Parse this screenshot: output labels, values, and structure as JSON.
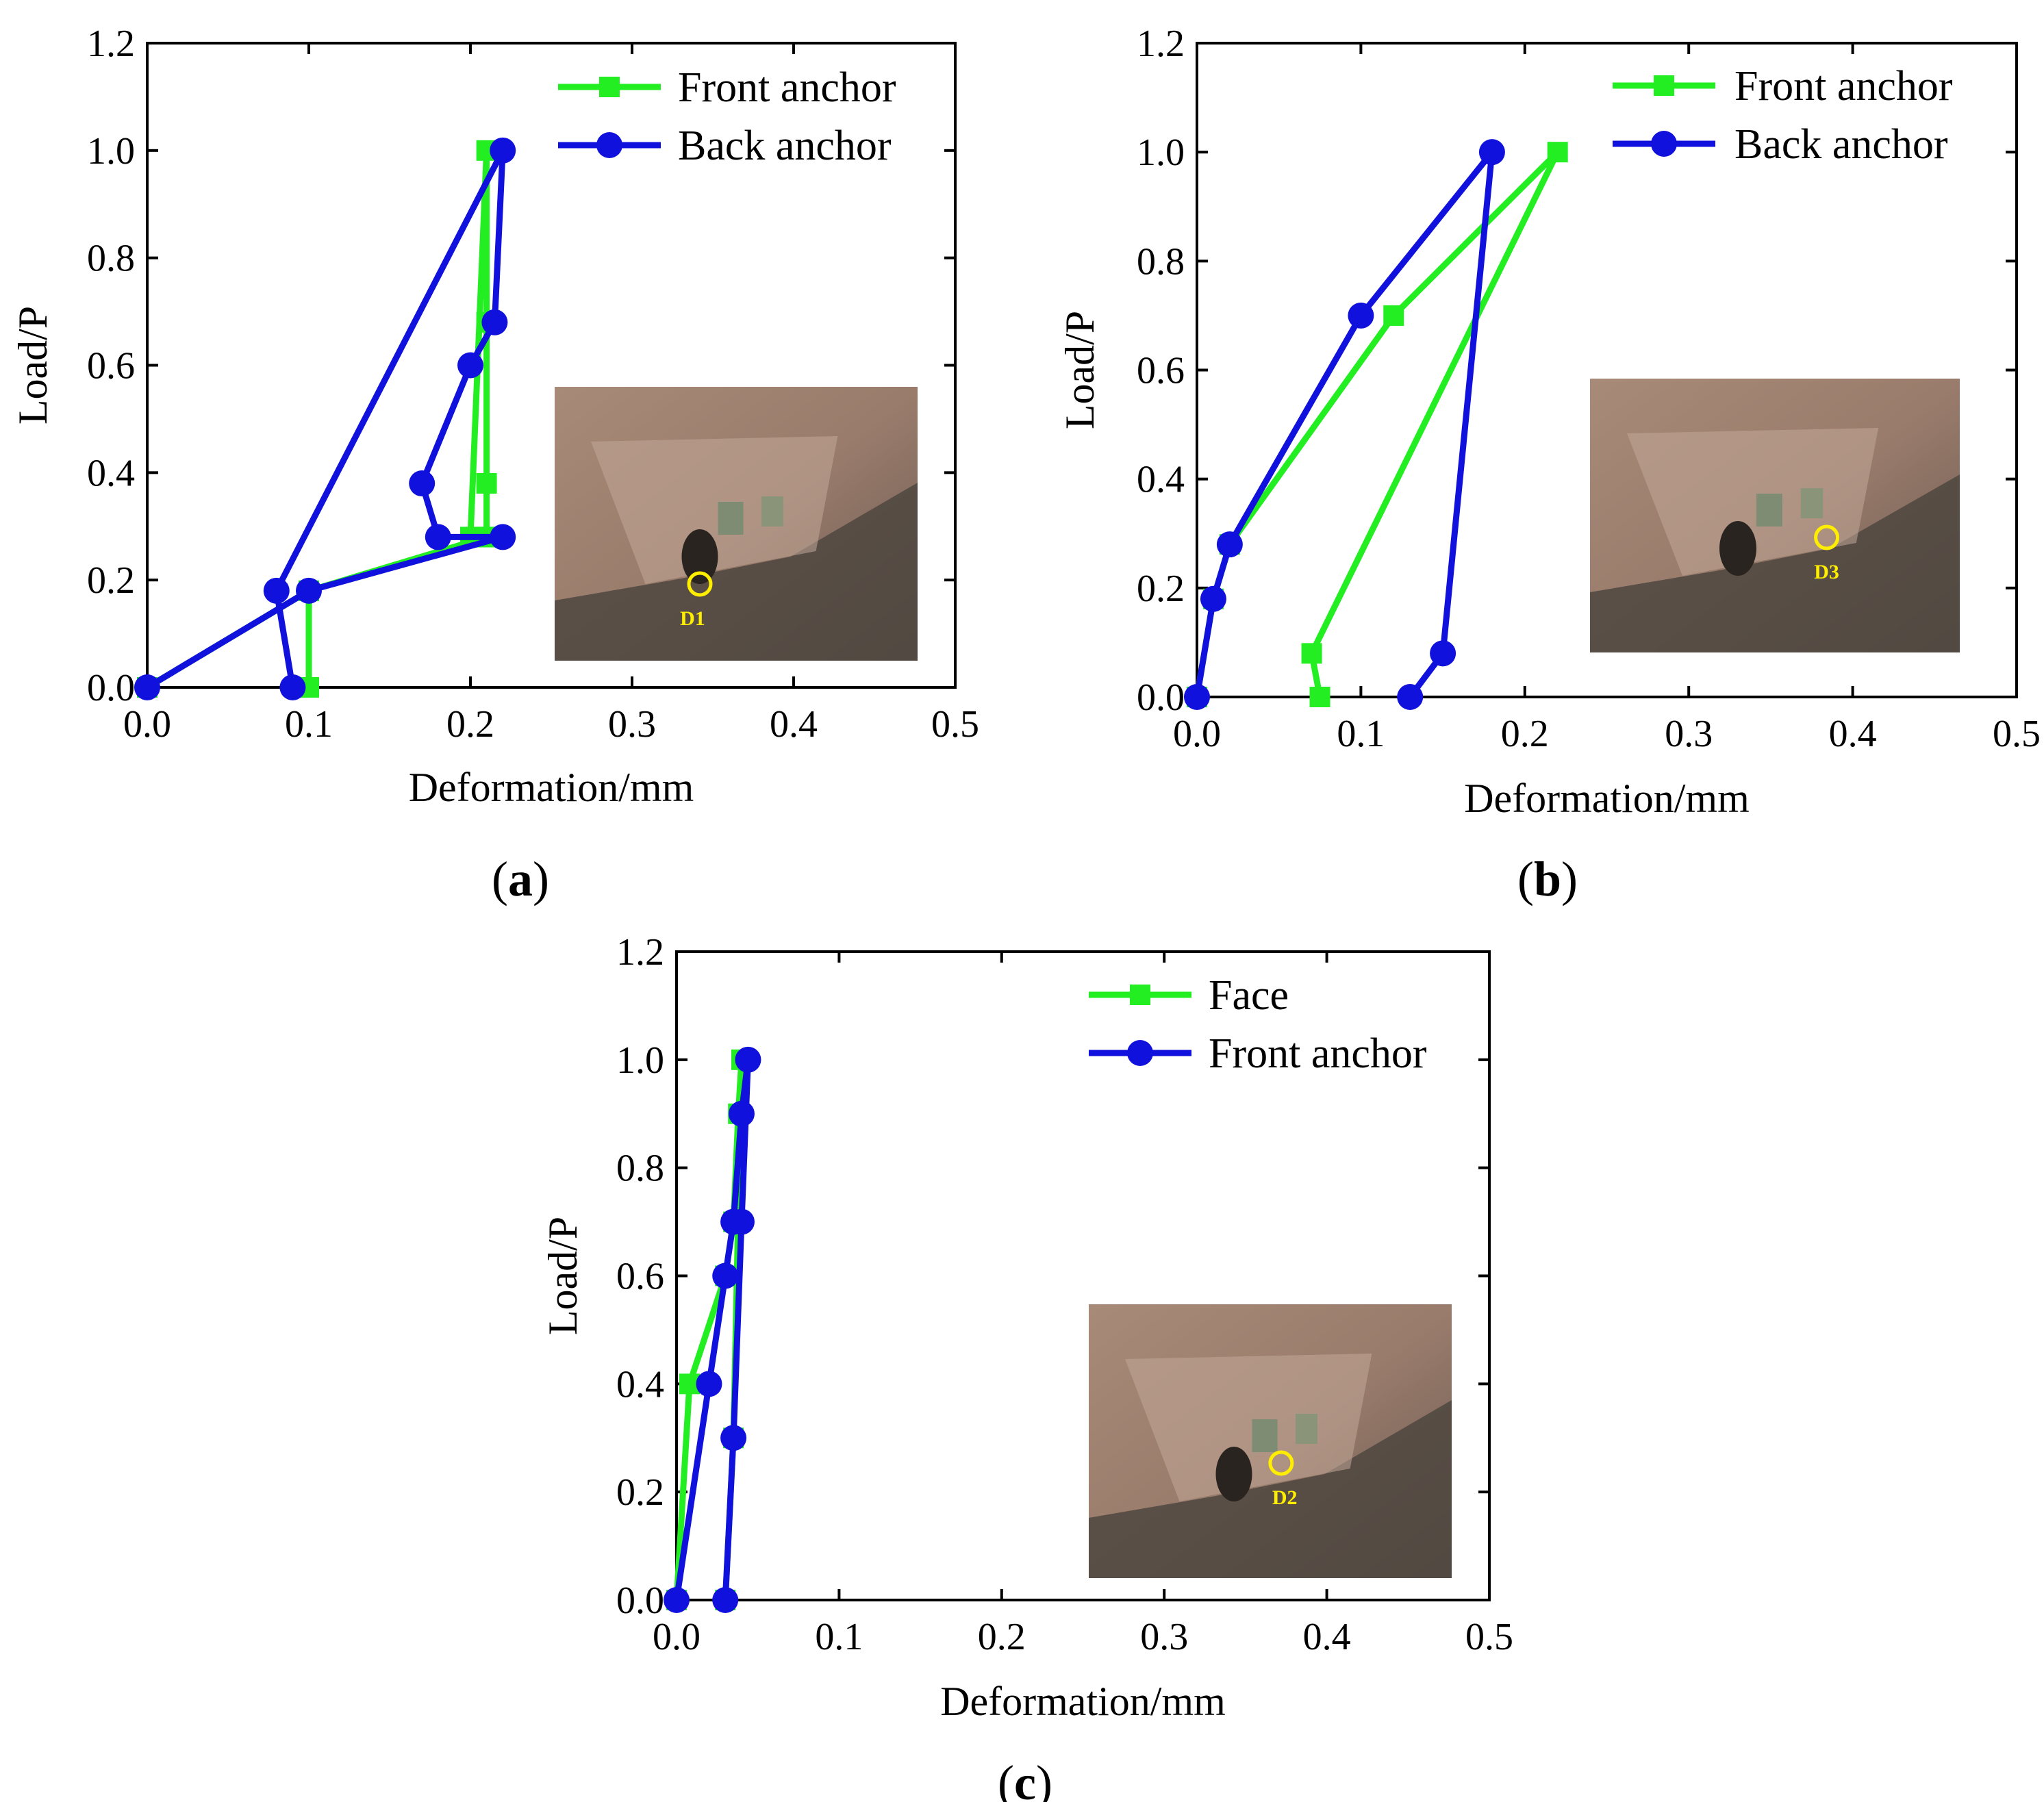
{
  "figure": {
    "colors": {
      "green": "#22ee22",
      "blue": "#1111dd",
      "axis": "#000000"
    }
  },
  "chart_data": [
    {
      "panel": "a",
      "panel_label": {
        "open": "(",
        "letter": "a",
        "close": ")"
      },
      "type": "line",
      "xlabel": "Deformation/mm",
      "ylabel": "Load/P",
      "xlim": [
        0,
        0.5
      ],
      "ylim": [
        0,
        1.2
      ],
      "xticks": [
        "0.0",
        "0.1",
        "0.2",
        "0.3",
        "0.4",
        "0.5"
      ],
      "yticks": [
        "0.0",
        "0.2",
        "0.4",
        "0.6",
        "0.8",
        "1.0",
        "1.2"
      ],
      "legend_position": "top-right",
      "inset": {
        "marker_label": "D1"
      },
      "series": [
        {
          "name": "Front anchor",
          "color": "#22ee22",
          "marker": "square",
          "x": [
            0.0,
            0.1,
            0.1,
            0.21,
            0.21,
            0.21,
            0.21,
            0.2,
            0.21,
            0.1,
            0.1
          ],
          "y": [
            0.0,
            0.18,
            0.18,
            0.28,
            0.38,
            0.68,
            1.0,
            0.28,
            0.28,
            0.18,
            0.0
          ]
        },
        {
          "name": "Back anchor",
          "color": "#1111dd",
          "marker": "circle",
          "x": [
            0.0,
            0.1,
            0.22,
            0.18,
            0.17,
            0.2,
            0.215,
            0.22,
            0.08,
            0.09
          ],
          "y": [
            0.0,
            0.18,
            0.28,
            0.28,
            0.38,
            0.6,
            0.68,
            1.0,
            0.18,
            0.0
          ]
        }
      ]
    },
    {
      "panel": "b",
      "panel_label": {
        "open": "(",
        "letter": "b",
        "close": ")"
      },
      "type": "line",
      "xlabel": "Deformation/mm",
      "ylabel": "Load/P",
      "xlim": [
        0,
        0.5
      ],
      "ylim": [
        0,
        1.2
      ],
      "xticks": [
        "0.0",
        "0.1",
        "0.2",
        "0.3",
        "0.4",
        "0.5"
      ],
      "yticks": [
        "0.0",
        "0.2",
        "0.4",
        "0.6",
        "0.8",
        "1.0",
        "1.2"
      ],
      "legend_position": "top-right",
      "inset": {
        "marker_label": "D3"
      },
      "series": [
        {
          "name": "Front anchor",
          "color": "#22ee22",
          "marker": "square",
          "x": [
            0.0,
            0.01,
            0.02,
            0.12,
            0.22,
            0.07,
            0.075
          ],
          "y": [
            0.0,
            0.18,
            0.28,
            0.7,
            1.0,
            0.08,
            0.0
          ]
        },
        {
          "name": "Back anchor",
          "color": "#1111dd",
          "marker": "circle",
          "x": [
            0.0,
            0.01,
            0.02,
            0.1,
            0.18,
            0.15,
            0.13
          ],
          "y": [
            0.0,
            0.18,
            0.28,
            0.7,
            1.0,
            0.08,
            0.0
          ]
        }
      ]
    },
    {
      "panel": "c",
      "panel_label": {
        "open": "(",
        "letter": "c",
        "close": ")"
      },
      "type": "line",
      "xlabel": "Deformation/mm",
      "ylabel": "Load/P",
      "xlim": [
        0,
        0.5
      ],
      "ylim": [
        0,
        1.2
      ],
      "xticks": [
        "0.0",
        "0.1",
        "0.2",
        "0.3",
        "0.4",
        "0.5"
      ],
      "yticks": [
        "0.0",
        "0.2",
        "0.4",
        "0.6",
        "0.8",
        "1.0",
        "1.2"
      ],
      "legend_position": "top-right",
      "inset": {
        "marker_label": "D2"
      },
      "series": [
        {
          "name": "Face",
          "color": "#22ee22",
          "marker": "square",
          "x": [
            0.0,
            0.008,
            0.03,
            0.035,
            0.038,
            0.04,
            0.035,
            0.03
          ],
          "y": [
            0.0,
            0.4,
            0.6,
            0.7,
            0.9,
            1.0,
            0.3,
            0.0
          ]
        },
        {
          "name": "Front anchor",
          "color": "#1111dd",
          "marker": "circle",
          "x": [
            0.0,
            0.02,
            0.03,
            0.035,
            0.04,
            0.044,
            0.04,
            0.035,
            0.03
          ],
          "y": [
            0.0,
            0.4,
            0.6,
            0.7,
            0.9,
            1.0,
            0.7,
            0.3,
            0.0
          ]
        }
      ]
    }
  ]
}
